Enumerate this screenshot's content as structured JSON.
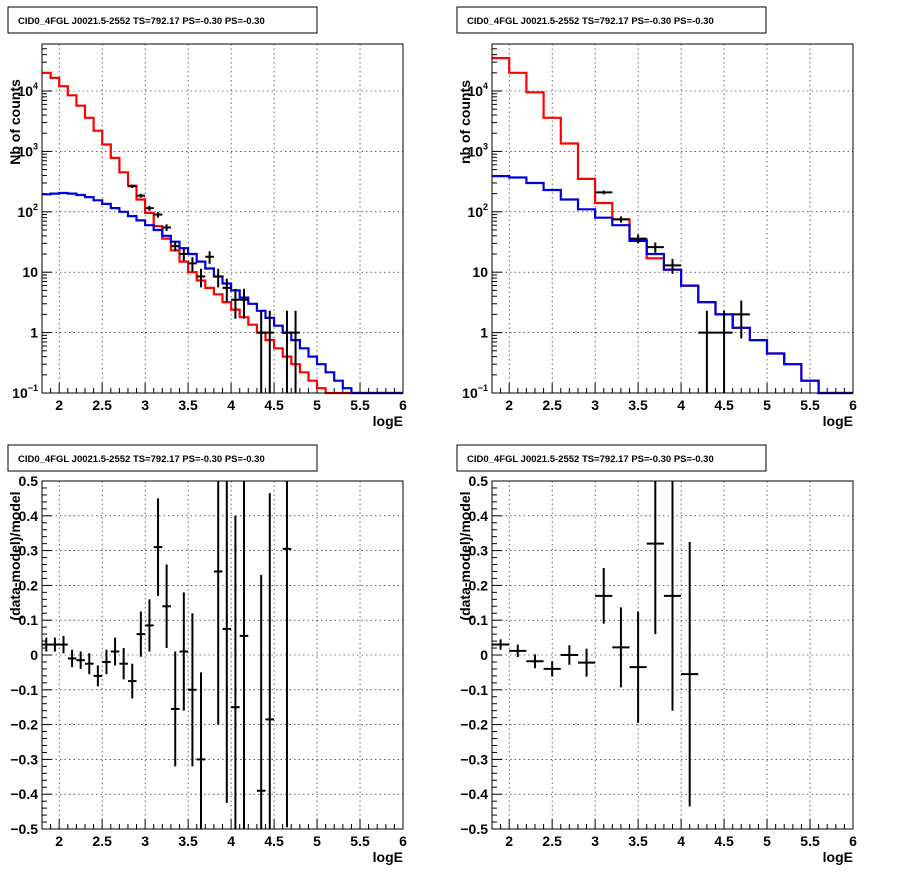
{
  "chart_data": [
    {
      "id": "counts-left",
      "type": "line",
      "title": "CID0_4FGL J0021.5-2552 TS=792.17 PS=-0.30 PS=-0.30",
      "xlabel": "logE",
      "ylabel": "Nb of counts",
      "log_y": true,
      "xlim": [
        1.8,
        6.0
      ],
      "ylim": [
        0.1,
        60000
      ],
      "grid": true,
      "x_tick_labels": [
        "2",
        "2.5",
        "3",
        "3.5",
        "4",
        "4.5",
        "5",
        "5.5",
        "6"
      ],
      "y_tick_labels": [
        {
          "value": 0.1,
          "base": "10",
          "exp": "−1"
        },
        {
          "value": 1,
          "base": "1",
          "exp": ""
        },
        {
          "value": 10,
          "base": "10",
          "exp": ""
        },
        {
          "value": 100,
          "base": "10",
          "exp": "2"
        },
        {
          "value": 1000,
          "base": "10",
          "exp": "3"
        },
        {
          "value": 10000,
          "base": "10",
          "exp": "4"
        }
      ],
      "bin_width": 0.1,
      "bin_start": 1.8,
      "series": [
        {
          "color": "#ff0000",
          "style": "step",
          "values": [
            20000,
            16500,
            12000,
            8500,
            5700,
            3600,
            2200,
            1300,
            780,
            450,
            270,
            160,
            96,
            58,
            36,
            23,
            15,
            10,
            7.3,
            5.5,
            4.3,
            3.2,
            2.4,
            1.8,
            1.35,
            1.0,
            0.75,
            0.55,
            0.4,
            0.3,
            0.22,
            0.16,
            0.12,
            0.1,
            0.1,
            0.1,
            0.1,
            0.1,
            0.1,
            0.1,
            0.1,
            0.1
          ]
        },
        {
          "color": "#0000dd",
          "style": "step",
          "values": [
            195,
            200,
            205,
            200,
            190,
            175,
            155,
            135,
            115,
            100,
            85,
            72,
            60,
            50,
            40,
            32,
            25,
            20,
            15,
            11.5,
            8.5,
            6.5,
            5,
            3.8,
            3,
            2.3,
            1.75,
            1.3,
            1.0,
            0.75,
            0.55,
            0.4,
            0.3,
            0.22,
            0.16,
            0.12,
            0.1,
            0.1,
            0.1,
            0.1,
            0.1,
            0.1
          ]
        }
      ],
      "points": {
        "color": "#000000",
        "x": [
          2.85,
          2.95,
          3.05,
          3.15,
          3.25,
          3.35,
          3.45,
          3.55,
          3.65,
          3.75,
          3.85,
          3.95,
          4.05,
          4.15,
          4.35,
          4.45,
          4.65,
          4.75
        ],
        "y": [
          265,
          185,
          115,
          90,
          55,
          27,
          20,
          14,
          8.5,
          18,
          8.5,
          5.5,
          3.5,
          3.5,
          1,
          1,
          1,
          1
        ],
        "yerr_low": [
          16,
          14,
          11,
          10,
          7,
          5,
          4.5,
          3.7,
          2.9,
          4.2,
          2.9,
          2.3,
          1.8,
          1.8,
          0.9,
          0.9,
          0.9,
          0.9
        ],
        "yerr_high": [
          16,
          14,
          11,
          10,
          7,
          5,
          4.5,
          3.7,
          2.9,
          4.2,
          2.9,
          2.3,
          1.8,
          1.8,
          1.3,
          1.3,
          1.3,
          1.3
        ],
        "xerr": 0.05
      }
    },
    {
      "id": "counts-right",
      "type": "line",
      "title": "CID0_4FGL J0021.5-2552 TS=792.17 PS=-0.30 PS=-0.30",
      "xlabel": "logE",
      "ylabel": "nb of counts",
      "log_y": true,
      "xlim": [
        1.8,
        6.0
      ],
      "ylim": [
        0.1,
        60000
      ],
      "grid": true,
      "x_tick_labels": [
        "2",
        "2.5",
        "3",
        "3.5",
        "4",
        "4.5",
        "5",
        "5.5",
        "6"
      ],
      "y_tick_labels": [
        {
          "value": 0.1,
          "base": "10",
          "exp": "−1"
        },
        {
          "value": 1,
          "base": "1",
          "exp": ""
        },
        {
          "value": 10,
          "base": "10",
          "exp": ""
        },
        {
          "value": 100,
          "base": "10",
          "exp": "2"
        },
        {
          "value": 1000,
          "base": "10",
          "exp": "3"
        },
        {
          "value": 10000,
          "base": "10",
          "exp": "4"
        }
      ],
      "bin_width": 0.2,
      "bin_start": 1.8,
      "series": [
        {
          "color": "#ff0000",
          "style": "step",
          "values": [
            35000,
            20000,
            9500,
            3600,
            1350,
            350,
            140,
            75,
            35,
            17,
            11,
            6,
            3.2,
            2,
            1.2,
            0.75,
            0.45,
            0.3,
            0.16,
            0.1,
            0.1
          ]
        },
        {
          "color": "#0000dd",
          "style": "step",
          "values": [
            390,
            370,
            300,
            230,
            160,
            110,
            80,
            60,
            33,
            20,
            11,
            6,
            3.2,
            2,
            1.2,
            0.75,
            0.45,
            0.3,
            0.16,
            0.1,
            0.1
          ]
        }
      ],
      "points": {
        "color": "#000000",
        "x": [
          3.1,
          3.3,
          3.5,
          3.7,
          3.9,
          4.3,
          4.5,
          4.7
        ],
        "y": [
          210,
          75,
          36,
          26,
          13,
          1,
          1,
          2
        ],
        "yerr_low": [
          15,
          9,
          6,
          5,
          3.6,
          0.9,
          0.9,
          1.2
        ],
        "yerr_high": [
          15,
          9,
          6,
          5,
          3.6,
          1.3,
          1.3,
          1.4
        ],
        "xerr": 0.1
      }
    },
    {
      "id": "resid-left",
      "type": "scatter",
      "title": "CID0_4FGL J0021.5-2552 TS=792.17 PS=-0.30 PS=-0.30",
      "xlabel": "logE",
      "ylabel": "(data-model)/model",
      "log_y": false,
      "xlim": [
        1.8,
        6.0
      ],
      "ylim": [
        -0.5,
        0.5
      ],
      "grid": true,
      "x_tick_labels": [
        "2",
        "2.5",
        "3",
        "3.5",
        "4",
        "4.5",
        "5",
        "5.5",
        "6"
      ],
      "y_tick_labels": [
        {
          "value": -0.5,
          "base": "−0.5",
          "exp": ""
        },
        {
          "value": -0.4,
          "base": "−0.4",
          "exp": ""
        },
        {
          "value": -0.3,
          "base": "−0.3",
          "exp": ""
        },
        {
          "value": -0.2,
          "base": "−0.2",
          "exp": ""
        },
        {
          "value": -0.1,
          "base": "−0.1",
          "exp": ""
        },
        {
          "value": 0,
          "base": "0",
          "exp": ""
        },
        {
          "value": 0.1,
          "base": "0.1",
          "exp": ""
        },
        {
          "value": 0.2,
          "base": "0.2",
          "exp": ""
        },
        {
          "value": 0.3,
          "base": "0.3",
          "exp": ""
        },
        {
          "value": 0.4,
          "base": "0.4",
          "exp": ""
        },
        {
          "value": 0.5,
          "base": "0.5",
          "exp": ""
        }
      ],
      "points": {
        "color": "#000000",
        "x": [
          1.85,
          1.95,
          2.05,
          2.15,
          2.25,
          2.35,
          2.45,
          2.55,
          2.65,
          2.75,
          2.85,
          2.95,
          3.05,
          3.15,
          3.25,
          3.35,
          3.45,
          3.55,
          3.65,
          3.85,
          3.95,
          4.05,
          4.15,
          4.35,
          4.45,
          4.65
        ],
        "y": [
          0.03,
          0.03,
          0.03,
          -0.01,
          -0.015,
          -0.025,
          -0.06,
          -0.02,
          0.01,
          -0.025,
          -0.075,
          0.06,
          0.085,
          0.31,
          0.14,
          -0.155,
          0.01,
          -0.1,
          -0.3,
          0.24,
          0.075,
          -0.15,
          0.055,
          -0.39,
          -0.185,
          0.305
        ],
        "yerr": [
          0.02,
          0.02,
          0.025,
          0.025,
          0.025,
          0.03,
          0.03,
          0.035,
          0.04,
          0.045,
          0.05,
          0.065,
          0.075,
          0.14,
          0.12,
          0.165,
          0.17,
          0.22,
          0.25,
          0.44,
          0.5,
          0.55,
          0.6,
          0.62,
          0.65,
          0.8
        ],
        "xerr": 0.05
      }
    },
    {
      "id": "resid-right",
      "type": "scatter",
      "title": "CID0_4FGL J0021.5-2552 TS=792.17 PS=-0.30 PS=-0.30",
      "xlabel": "logE",
      "ylabel": "(data-model)/model",
      "log_y": false,
      "xlim": [
        1.8,
        6.0
      ],
      "ylim": [
        -0.5,
        0.5
      ],
      "grid": true,
      "x_tick_labels": [
        "2",
        "2.5",
        "3",
        "3.5",
        "4",
        "4.5",
        "5",
        "5.5",
        "6"
      ],
      "y_tick_labels": [
        {
          "value": -0.5,
          "base": "−0.5",
          "exp": ""
        },
        {
          "value": -0.4,
          "base": "−0.4",
          "exp": ""
        },
        {
          "value": -0.3,
          "base": "−0.3",
          "exp": ""
        },
        {
          "value": -0.2,
          "base": "−0.2",
          "exp": ""
        },
        {
          "value": -0.1,
          "base": "−0.1",
          "exp": ""
        },
        {
          "value": 0,
          "base": "0",
          "exp": ""
        },
        {
          "value": 0.1,
          "base": "0.1",
          "exp": ""
        },
        {
          "value": 0.2,
          "base": "0.2",
          "exp": ""
        },
        {
          "value": 0.3,
          "base": "0.3",
          "exp": ""
        },
        {
          "value": 0.4,
          "base": "0.4",
          "exp": ""
        },
        {
          "value": 0.5,
          "base": "0.5",
          "exp": ""
        }
      ],
      "points": {
        "color": "#000000",
        "x": [
          1.9,
          2.1,
          2.3,
          2.5,
          2.7,
          2.9,
          3.1,
          3.3,
          3.5,
          3.7,
          3.9,
          4.1
        ],
        "y": [
          0.03,
          0.012,
          -0.018,
          -0.04,
          0.0,
          -0.022,
          0.17,
          0.022,
          -0.035,
          0.32,
          0.17,
          -0.055
        ],
        "yerr": [
          0.015,
          0.018,
          0.02,
          0.022,
          0.028,
          0.04,
          0.08,
          0.115,
          0.16,
          0.26,
          0.33,
          0.38
        ],
        "xerr": 0.1
      }
    }
  ]
}
